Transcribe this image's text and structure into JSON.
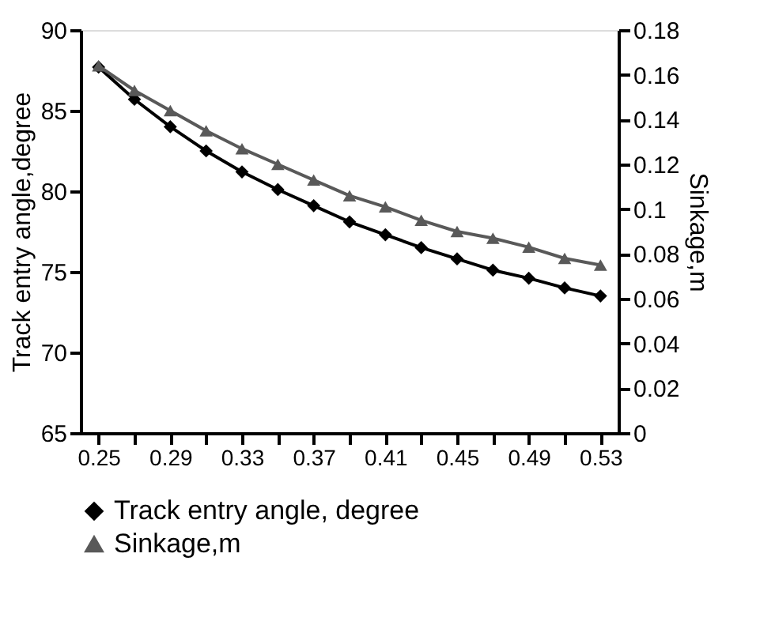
{
  "chart_data": {
    "type": "line",
    "categories": [
      "0.25",
      null,
      "0.29",
      null,
      "0.33",
      null,
      "0.37",
      null,
      "0.41",
      null,
      "0.45",
      null,
      "0.49",
      null,
      "0.53"
    ],
    "series": [
      {
        "name": "Track entry angle, degree",
        "color": "#000000",
        "marker": "diamond",
        "values": [
          87.7,
          85.7,
          84.0,
          82.5,
          81.2,
          80.1,
          79.1,
          78.1,
          77.3,
          76.5,
          75.8,
          75.1,
          74.6,
          74.0,
          73.5
        ]
      },
      {
        "name": "Sinkage,m",
        "color": "#595959",
        "marker": "triangle",
        "axis": "y2",
        "values": [
          0.164,
          0.153,
          0.144,
          0.135,
          0.127,
          0.12,
          0.113,
          0.106,
          0.101,
          0.095,
          0.09,
          0.087,
          0.083,
          0.078,
          0.075
        ]
      }
    ],
    "ylabel": "Track entry angle,degree",
    "y2label": "Sinkage,m",
    "ylim": [
      65,
      90
    ],
    "yticks": [
      65,
      70,
      75,
      80,
      85,
      90
    ],
    "y2lim": [
      0,
      0.18
    ],
    "y2ticks": [
      0,
      0.02,
      0.04,
      0.06,
      0.08,
      0.1,
      0.12,
      0.14,
      0.16,
      0.18
    ],
    "legend": "bottom",
    "grid": false
  }
}
